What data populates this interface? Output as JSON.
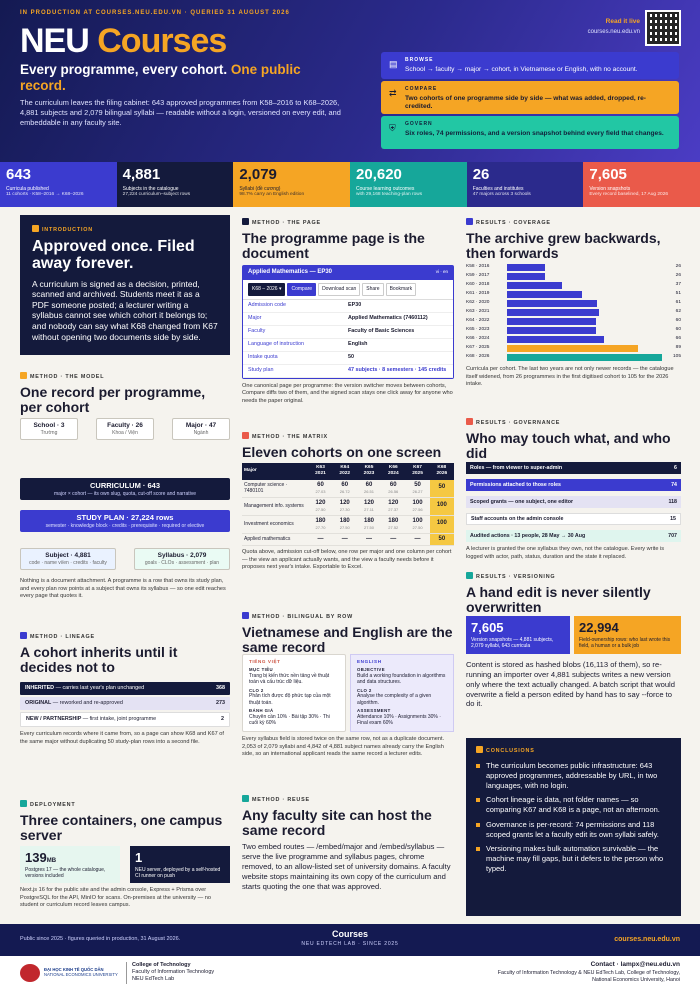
{
  "header": {
    "kicker": "IN PRODUCTION AT COURSES.NEU.EDU.VN · QUERIED 31 AUGUST 2026",
    "title_a": "NEU",
    "title_b": "Courses",
    "sub_a": "Every programme, every cohort.",
    "sub_b": "One public record.",
    "desc": "The curriculum leaves the filing cabinet: 643 approved programmes from K58–2016 to K68–2026, 4,881 subjects and 2,079 bilingual syllabi — readable without a login, versioned on every edit, and embeddable in any faculty site.",
    "live": "Read it live",
    "url": "courses.neu.edu.vn"
  },
  "hcards": [
    {
      "t": "BROWSE",
      "b": "School → faculty → major → cohort, in Vietnamese or English, with no account."
    },
    {
      "t": "COMPARE",
      "b": "Two cohorts of one programme side by side — what was added, dropped, re-credited."
    },
    {
      "t": "GOVERN",
      "b": "Six roles, 74 permissions, and a version snapshot behind every field that changes."
    }
  ],
  "stats": [
    {
      "n": "643",
      "l": "Curricula published",
      "s": "11 cohorts · K58–2016 → K68–2026",
      "c": "#3b3bcf"
    },
    {
      "n": "4,881",
      "l": "Subjects in the catalogue",
      "s": "27,224 curriculum–subject rows",
      "c": "#141a3c"
    },
    {
      "n": "2,079",
      "l": "Syllabi (đề cương)",
      "s": "98.7% carry an English edition",
      "c": "#f5a524"
    },
    {
      "n": "20,620",
      "l": "Course learning outcomes",
      "s": "with 29,168 teaching-plan rows",
      "c": "#16a79a"
    },
    {
      "n": "26",
      "l": "Faculties and institutes",
      "s": "47 majors across 3 schools",
      "c": "#2b2a8c"
    },
    {
      "n": "7,605",
      "l": "Version snapshots",
      "s": "Every record baselined, 17 Aug 2026",
      "c": "#ea5a4a"
    }
  ],
  "intro": {
    "tag": "INTRODUCTION",
    "h": "Approved once. Filed away forever.",
    "tx": "A curriculum is signed as a decision, printed, scanned and archived. Students meet it as a PDF someone posted; a lecturer writing a syllabus cannot see which cohort it belongs to; and nobody can say what K68 changed from K67 without opening two documents side by side."
  },
  "model": {
    "tag": "METHOD · THE MODEL",
    "h": "One record per programme, per cohort",
    "school": "School · 3",
    "school_s": "Trường",
    "faculty": "Faculty · 26",
    "faculty_s": "Khoa / Viện",
    "major": "Major · 47",
    "major_s": "Ngành",
    "cur": "CURRICULUM · 643",
    "cur_s": "major × cohort — its own slug, quota, cut-off score and narrative",
    "plan": "STUDY PLAN · 27,224 rows",
    "plan_s": "semester · knowledge block · credits · prerequisite · required or elective",
    "subj": "Subject · 4,881",
    "subj_s": "code · name vi/en · credits · faculty",
    "syl": "Syllabus · 2,079",
    "syl_s": "goals · CLOs · assessment · plan",
    "note": "Nothing is a document attachment. A programme is a row that owns its study plan, and every plan row points at a subject that owns its syllabus — so one edit reaches every page that quotes it."
  },
  "lineage": {
    "tag": "METHOD · LINEAGE",
    "h": "A cohort inherits until it decides not to",
    "rows": [
      {
        "k": "INHERITED",
        "d": "— carries last year's plan unchanged",
        "v": "368"
      },
      {
        "k": "ORIGINAL",
        "d": "— reworked and re-approved",
        "v": "273"
      },
      {
        "k": "NEW / PARTNERSHIP",
        "d": "— first intake, joint programme",
        "v": "2"
      }
    ],
    "note": "Every curriculum records where it came from, so a page can show K68 and K67 of the same major without duplicating 50 study-plan rows into a second file."
  },
  "deploy": {
    "tag": "DEPLOYMENT",
    "h": "Three containers, one campus server",
    "n1": "139",
    "u1": "MB",
    "l1": "Postgres 17 — the whole catalogue, versions included",
    "n2": "1",
    "l2": "NEU server, deployed by a self-hosted CI runner on push",
    "note": "Next.js 16 for the public site and the admin console, Express + Prisma over PostgreSQL for the API, MinIO for scans. On-premises at the university — no student or curriculum record leaves campus."
  },
  "page": {
    "tag": "METHOD · THE PAGE",
    "h": "The programme page is the document",
    "title": "Applied Mathematics — EP30",
    "lang": "vi · en",
    "tabs": [
      "K68 – 2026 ▾",
      "Compare",
      "Download scan",
      "Share",
      "Bookmark"
    ],
    "fields": [
      [
        "Admission code",
        "EP30"
      ],
      [
        "Major",
        "Applied Mathematics (7460112)"
      ],
      [
        "Faculty",
        "Faculty of Basic Sciences"
      ],
      [
        "Language of instruction",
        "English"
      ],
      [
        "Intake quota",
        "50"
      ],
      [
        "Study plan",
        "47 subjects · 8 semesters · 145 credits"
      ]
    ],
    "note": "One canonical page per programme: the version switcher moves between cohorts, Compare diffs two of them, and the signed scan stays one click away for anyone who needs the paper original."
  },
  "matrix": {
    "tag": "METHOD · THE MATRIX",
    "h": "Eleven cohorts on one screen",
    "cols": [
      "Major",
      "K63 2021",
      "K64 2022",
      "K65 2023",
      "K66 2024",
      "K67 2025",
      "K68 2026"
    ],
    "rows": [
      {
        "m": "Computer science · 7480101",
        "v": [
          [
            "60",
            "27.03"
          ],
          [
            "60",
            "26.72"
          ],
          [
            "60",
            "26.51"
          ],
          [
            "60",
            "26.56"
          ],
          [
            "50",
            "26.27"
          ],
          [
            "50",
            ""
          ]
        ]
      },
      {
        "m": "Management info. systems",
        "v": [
          [
            "120",
            "27.50"
          ],
          [
            "120",
            "27.30"
          ],
          [
            "120",
            "27.11"
          ],
          [
            "120",
            "27.37"
          ],
          [
            "100",
            "27.56"
          ],
          [
            "100",
            ""
          ]
        ]
      },
      {
        "m": "Investment economics",
        "v": [
          [
            "180",
            "27.70"
          ],
          [
            "180",
            "27.50"
          ],
          [
            "180",
            "27.50"
          ],
          [
            "180",
            "27.52"
          ],
          [
            "100",
            "27.50"
          ],
          [
            "100",
            ""
          ]
        ]
      },
      {
        "m": "Applied mathematics",
        "v": [
          [
            "—",
            ""
          ],
          [
            "—",
            ""
          ],
          [
            "—",
            ""
          ],
          [
            "—",
            ""
          ],
          [
            "—",
            ""
          ],
          [
            "50",
            ""
          ]
        ]
      }
    ],
    "note": "Quota above, admission cut-off below, one row per major and one column per cohort — the view an applicant actually wants, and the view a faculty needs before it proposes next year's intake. Exportable to Excel."
  },
  "bil": {
    "tag": "METHOD · BILINGUAL BY ROW",
    "h": "Vietnamese and English are the same record",
    "vi": {
      "lg": "TIẾNG VIỆT",
      "k1": "MỤC TIÊU",
      "v1": "Trang bị kiến thức nền tảng về thuật toán và cấu trúc dữ liệu.",
      "k2": "CLO 2",
      "v2": "Phân tích được độ phức tạp của một thuật toán.",
      "k3": "ĐÁNH GIÁ",
      "v3": "Chuyên cần 10% · Bài tập 30% · Thi cuối kỳ 60%"
    },
    "en": {
      "lg": "ENGLISH",
      "k1": "OBJECTIVE",
      "v1": "Build a working foundation in algorithms and data structures.",
      "k2": "CLO 2",
      "v2": "Analyse the complexity of a given algorithm.",
      "k3": "ASSESSMENT",
      "v3": "Attendance 10% · Assignments 30% · Final exam 60%"
    },
    "note": "Every syllabus field is stored twice on the same row, not as a duplicate document. 2,053 of 2,079 syllabi and 4,842 of 4,881 subject names already carry the English side, so an international applicant reads the same record a lecturer edits."
  },
  "reuse": {
    "tag": "METHOD · REUSE",
    "h": "Any faculty site can host the same record",
    "tx": "Two embed routes — /embed/major and /embed/syllabus — serve the live programme and syllabus pages, chrome removed, to an allow-listed set of university domains. A faculty website stops maintaining its own copy of the curriculum and starts quoting the one that was approved."
  },
  "coverage": {
    "tag": "RESULTS · COVERAGE",
    "h": "The archive grew backwards, then forwards",
    "max": 105,
    "rows": [
      [
        "K58 · 2016",
        26
      ],
      [
        "K59 · 2017",
        26
      ],
      [
        "K60 · 2018",
        37
      ],
      [
        "K61 · 2019",
        51
      ],
      [
        "K62 · 2020",
        61
      ],
      [
        "K63 · 2021",
        62
      ],
      [
        "K64 · 2022",
        60
      ],
      [
        "K65 · 2023",
        60
      ],
      [
        "K66 · 2024",
        66
      ],
      [
        "K67 · 2025",
        89
      ],
      [
        "K68 · 2026",
        105
      ]
    ],
    "note": "Curricula per cohort. The last two years are not only newer records — the catalogue itself widened, from 26 programmes in the first digitised cohort to 105 for the 2026 intake."
  },
  "governance": {
    "tag": "RESULTS · GOVERNANCE",
    "h": "Who may touch what, and who did",
    "rows": [
      [
        "Roles — from viewer to super-admin",
        "6"
      ],
      [
        "Permissions attached to those roles",
        "74"
      ],
      [
        "Scoped grants — one subject, one editor",
        "118"
      ],
      [
        "Staff accounts on the admin console",
        "15"
      ],
      [
        "Audited actions · 13 people, 28 May → 30 Aug",
        "707"
      ]
    ],
    "note": "A lecturer is granted the one syllabus they own, not the catalogue. Every write is logged with actor, path, status, duration and the state it replaced."
  },
  "versioning": {
    "tag": "RESULTS · VERSIONING",
    "h": "A hand edit is never silently overwritten",
    "n1": "7,605",
    "l1": "Version snapshots — 4,881 subjects, 2,079 syllabi, 643 curricula",
    "n2": "22,994",
    "l2": "Field-ownership rows: who last wrote this field, a human or a bulk job",
    "tx": "Content is stored as hashed blobs (16,113 of them), so re-running an importer over 4,881 subjects writes a new version only where the text actually changed. A batch script that would overwrite a field a person edited by hand has to say --force to do it."
  },
  "conclusions": {
    "tag": "CONCLUSIONS",
    "items": [
      "The curriculum becomes public infrastructure: 643 approved programmes, addressable by URL, in two languages, with no login.",
      "Cohort lineage is data, not folder names — so comparing K67 and K68 is a page, not an afternoon.",
      "Governance is per-record: 74 permissions and 118 scoped grants let a faculty edit its own syllabi safely.",
      "Versioning makes bulk automation survivable — the machine may fill gaps, but it defers to the person who typed."
    ]
  },
  "footer": {
    "left": "Public since 2025 · figures queried in production, 31 August 2026.",
    "mid": "Courses",
    "mid_s": "NEU EDTECH LAB · SINCE 2025",
    "right": "courses.neu.edu.vn",
    "uni": "ĐẠI HỌC KINH TẾ QUỐC DÂN",
    "uni_s": "NATIONAL ECONOMICS UNIVERSITY",
    "college": "College of Technology",
    "college_a": "Faculty of Information Technology",
    "college_b": "NEU EdTech Lab",
    "contact": "Contact · lampx@neu.edu.vn",
    "contact_a": "Faculty of Information Technology & NEU EdTech Lab, College of Technology,",
    "contact_b": "National Economics University, Hanoi"
  }
}
